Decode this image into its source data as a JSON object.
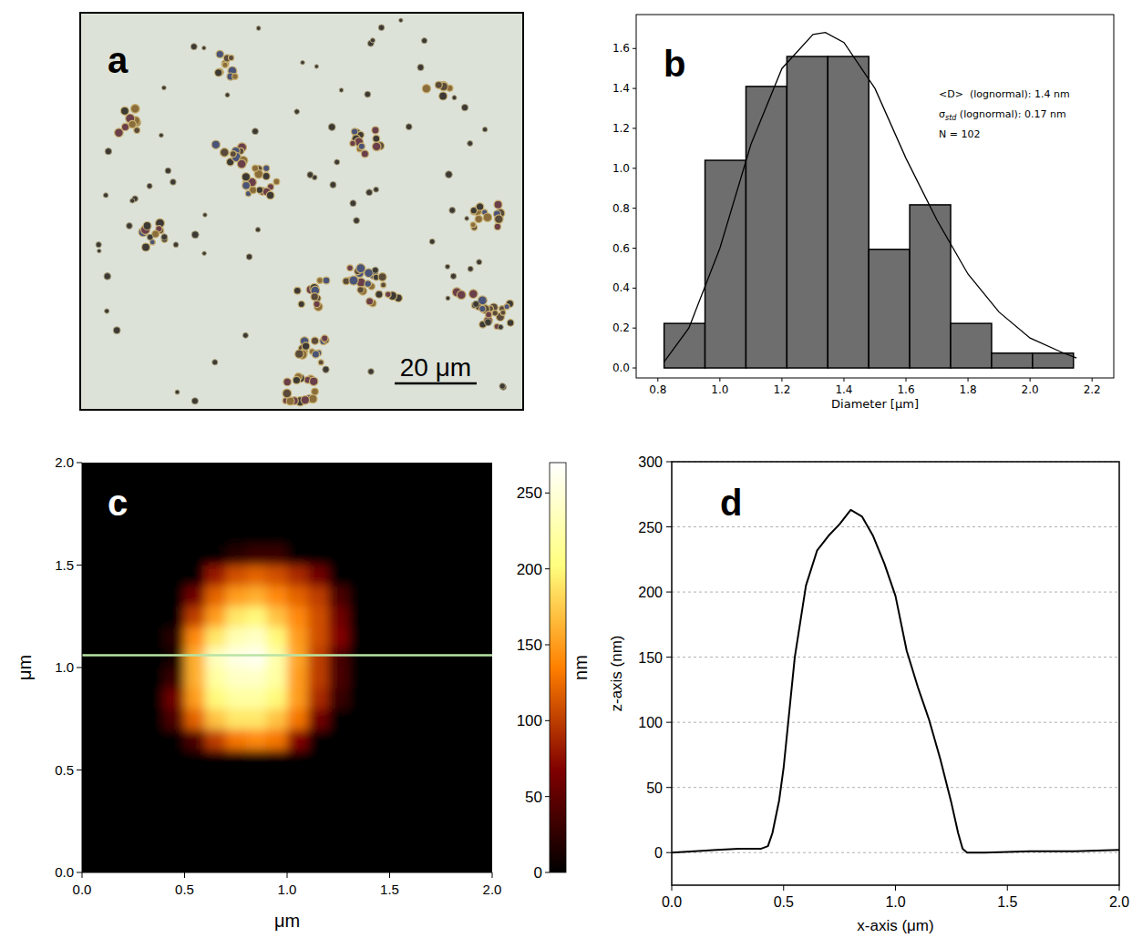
{
  "chart_data": [
    {
      "type": "image",
      "label": "a",
      "xlim": [
        0,
        108
      ],
      "scale_bar": 20,
      "scale_bar_label": "20 μm"
    },
    {
      "type": "histogram",
      "label": "b",
      "x_label": "Diameter [μm]",
      "bins": [
        0.82,
        0.952,
        1.084,
        1.216,
        1.348,
        1.48,
        1.612,
        1.744,
        1.876,
        2.008,
        2.14
      ],
      "values": [
        0.223,
        1.04,
        1.41,
        1.56,
        1.56,
        0.594,
        0.817,
        0.223,
        0.074,
        0.074
      ],
      "color": "#6e6e6e",
      "fit": {
        "x": [
          0.82,
          0.9,
          1.0,
          1.1,
          1.2,
          1.3,
          1.34,
          1.4,
          1.5,
          1.6,
          1.7,
          1.8,
          1.9,
          2.0,
          2.1,
          2.15
        ],
        "values": [
          0.03,
          0.2,
          0.6,
          1.12,
          1.5,
          1.67,
          1.68,
          1.63,
          1.4,
          1.05,
          0.74,
          0.47,
          0.28,
          0.15,
          0.08,
          0.05
        ],
        "color": "#000000"
      },
      "xlim": [
        0.73,
        2.27
      ],
      "ylim": [
        -0.05,
        1.77
      ],
      "xticks": [
        0.8,
        {
          "value": 1.0,
          "label": "1.0"
        },
        1.2,
        1.4,
        1.6,
        1.8,
        {
          "value": 2.0,
          "label": "2.0"
        },
        2.2
      ],
      "yticks": [
        {
          "value": 0.0,
          "label": "0.0"
        },
        0.2,
        0.4,
        0.6,
        0.8,
        {
          "value": 1.0,
          "label": "1.0"
        },
        1.2,
        1.4,
        1.6
      ],
      "annotations": [
        {
          "text": "<D>  (lognormal): 1.4 nm"
        },
        {
          "symbol": "σ",
          "subscript": "std",
          "text": " (lognormal): 0.17 nm"
        },
        {
          "text": "N = 102"
        }
      ]
    },
    {
      "type": "heatmap",
      "label": "c",
      "x_label": "μm",
      "y_label": "μm",
      "x": [
        0.05,
        0.15,
        0.25,
        0.35,
        0.45,
        0.55,
        0.65,
        0.75,
        0.85,
        0.95,
        1.05,
        1.15,
        1.25,
        1.35,
        1.45,
        1.55,
        1.65,
        1.75,
        1.85,
        1.95
      ],
      "y": [
        0.05,
        0.15,
        0.25,
        0.35,
        0.45,
        0.55,
        0.65,
        0.75,
        0.85,
        0.95,
        1.05,
        1.15,
        1.25,
        1.35,
        1.45,
        1.55,
        1.65,
        1.75,
        1.85,
        1.95
      ],
      "z": [
        [
          0,
          0,
          0,
          0,
          0,
          0,
          0,
          0,
          0,
          0,
          0,
          0,
          0,
          0,
          0,
          0,
          0,
          0,
          0,
          0
        ],
        [
          0,
          0,
          0,
          0,
          0,
          0,
          0,
          0,
          0,
          0,
          0,
          0,
          0,
          0,
          0,
          0,
          0,
          0,
          0,
          0
        ],
        [
          0,
          0,
          0,
          0,
          0,
          0,
          0,
          0,
          0,
          0,
          0,
          0,
          0,
          0,
          0,
          0,
          0,
          0,
          0,
          0
        ],
        [
          0,
          0,
          0,
          0,
          0,
          0,
          0,
          0,
          0,
          0,
          0,
          0,
          0,
          0,
          0,
          0,
          0,
          0,
          0,
          0
        ],
        [
          0,
          0,
          0,
          0,
          0,
          0,
          0,
          0,
          0,
          0,
          0,
          0,
          0,
          0,
          0,
          0,
          0,
          0,
          0,
          0
        ],
        [
          0,
          0,
          0,
          0,
          0,
          0,
          0,
          0,
          0,
          0,
          0,
          0,
          0,
          0,
          0,
          0,
          0,
          0,
          0,
          0
        ],
        [
          0,
          0,
          0,
          0,
          0,
          40,
          100,
          130,
          140,
          130,
          70,
          0,
          0,
          0,
          0,
          0,
          0,
          0,
          0,
          0
        ],
        [
          0,
          0,
          0,
          0,
          40,
          120,
          170,
          190,
          190,
          170,
          130,
          60,
          0,
          0,
          0,
          0,
          0,
          0,
          0,
          0
        ],
        [
          0,
          0,
          0,
          0,
          60,
          150,
          200,
          220,
          220,
          200,
          150,
          90,
          30,
          0,
          0,
          0,
          0,
          0,
          0,
          0
        ],
        [
          0,
          0,
          0,
          0,
          30,
          160,
          220,
          240,
          240,
          220,
          150,
          100,
          40,
          0,
          0,
          0,
          0,
          0,
          0,
          0
        ],
        [
          0,
          0,
          0,
          0,
          10,
          160,
          235,
          255,
          262,
          225,
          155,
          100,
          38,
          0,
          0,
          0,
          0,
          0,
          0,
          0
        ],
        [
          0,
          0,
          0,
          0,
          20,
          140,
          190,
          230,
          240,
          200,
          150,
          110,
          70,
          0,
          0,
          0,
          0,
          0,
          0,
          0
        ],
        [
          0,
          0,
          0,
          0,
          0,
          100,
          150,
          190,
          200,
          170,
          140,
          110,
          60,
          0,
          0,
          0,
          0,
          0,
          0,
          0
        ],
        [
          0,
          0,
          0,
          0,
          0,
          60,
          120,
          150,
          160,
          140,
          120,
          100,
          40,
          0,
          0,
          0,
          0,
          0,
          0,
          0
        ],
        [
          0,
          0,
          0,
          0,
          0,
          0,
          80,
          110,
          120,
          110,
          90,
          60,
          0,
          0,
          0,
          0,
          0,
          0,
          0,
          0
        ],
        [
          0,
          0,
          0,
          0,
          0,
          0,
          0,
          20,
          30,
          30,
          0,
          0,
          0,
          0,
          0,
          0,
          0,
          0,
          0,
          0
        ],
        [
          0,
          0,
          0,
          0,
          0,
          0,
          0,
          0,
          0,
          0,
          0,
          0,
          0,
          0,
          0,
          0,
          0,
          0,
          0,
          0
        ],
        [
          0,
          0,
          0,
          0,
          0,
          0,
          0,
          0,
          0,
          0,
          0,
          0,
          0,
          0,
          0,
          0,
          0,
          0,
          0,
          0
        ],
        [
          0,
          0,
          0,
          0,
          0,
          0,
          0,
          0,
          0,
          0,
          0,
          0,
          0,
          0,
          0,
          0,
          0,
          0,
          0,
          0
        ],
        [
          0,
          0,
          0,
          0,
          0,
          0,
          0,
          0,
          0,
          0,
          0,
          0,
          0,
          0,
          0,
          0,
          0,
          0,
          0,
          0
        ]
      ],
      "xlim": [
        0,
        2
      ],
      "ylim": [
        0,
        2
      ],
      "xticks": [
        {
          "value": 0,
          "label": "0.0"
        },
        0.5,
        {
          "value": 1,
          "label": "1.0"
        },
        1.5,
        {
          "value": 2,
          "label": "2.0"
        }
      ],
      "yticks": [
        {
          "value": 0,
          "label": "0.0"
        },
        0.5,
        {
          "value": 1,
          "label": "1.0"
        },
        1.5,
        {
          "value": 2,
          "label": "2.0"
        }
      ],
      "colorbar": {
        "range": [
          0,
          270
        ],
        "ticks": [
          0,
          50,
          100,
          150,
          200,
          250
        ],
        "label": "nm"
      },
      "profile_y": 1.06
    },
    {
      "type": "line",
      "label": "d",
      "x_label": "x-axis (μm)",
      "y_label": "z-axis (nm)",
      "x": [
        0,
        0.1,
        0.2,
        0.3,
        0.4,
        0.43,
        0.45,
        0.48,
        0.5,
        0.55,
        0.6,
        0.65,
        0.7,
        0.75,
        0.8,
        0.85,
        0.9,
        0.95,
        1.0,
        1.05,
        1.1,
        1.15,
        1.2,
        1.25,
        1.28,
        1.3,
        1.32,
        1.4,
        1.6,
        1.8,
        2.0
      ],
      "values": [
        0,
        1,
        2,
        3,
        3,
        5,
        15,
        40,
        65,
        150,
        205,
        232,
        243,
        252,
        263,
        258,
        243,
        222,
        197,
        155,
        127,
        102,
        72,
        38,
        15,
        3,
        0,
        0,
        1,
        1,
        2
      ],
      "color": "#000000",
      "grid": true,
      "xlim": [
        0,
        2
      ],
      "ylim": [
        -25,
        300
      ],
      "xticks": [
        {
          "value": 0,
          "label": "0.0"
        },
        0.5,
        {
          "value": 1,
          "label": "1.0"
        },
        1.5,
        {
          "value": 2,
          "label": "2.0"
        }
      ],
      "yticks": [
        0,
        50,
        100,
        150,
        200,
        250,
        300
      ]
    }
  ]
}
